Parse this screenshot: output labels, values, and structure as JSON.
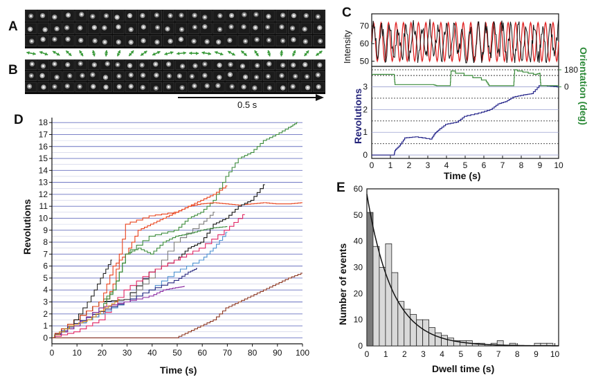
{
  "panels": {
    "a": {
      "label": "A"
    },
    "b": {
      "label": "B"
    },
    "c": {
      "label": "C"
    },
    "d": {
      "label": "D"
    },
    "e": {
      "label": "E"
    }
  },
  "scale_bar": {
    "label": "0.5 s"
  },
  "colors": {
    "frame": "#0b0b0b",
    "arrows": "#3a9a3a",
    "red": "#e02020",
    "green": "#3a8a3a",
    "blue": "#25258a",
    "grid": "#9aa0d0"
  },
  "chart_data": [
    {
      "id": "C-top",
      "type": "line",
      "ylabel": "Intensity",
      "xlim": [
        0,
        10
      ],
      "ylim": [
        47,
        77
      ],
      "yticks": [
        50,
        60,
        70
      ],
      "series": [
        {
          "color": "#e02020",
          "kind": "sine",
          "period_s": 0.4,
          "mean": 61,
          "amplitude": 11
        },
        {
          "color": "#111111",
          "kind": "noisy-signal",
          "mean": 61,
          "range": [
            49,
            76
          ]
        }
      ]
    },
    {
      "id": "C-bottom",
      "type": "line",
      "xlabel": "Time (s)",
      "ylabel": "Revolutions",
      "y2label": "Orientation (deg)",
      "xlim": [
        0,
        10
      ],
      "xticks": [
        0,
        1,
        2,
        3,
        4,
        5,
        6,
        7,
        8,
        9,
        10
      ],
      "ylim": [
        -0.15,
        3.9
      ],
      "yticks": [
        0,
        1,
        2,
        3
      ],
      "y2ticks": [
        "180",
        "0"
      ],
      "series": [
        {
          "color": "#25258a",
          "x": [
            0,
            1.2,
            1.25,
            1.5,
            1.8,
            2.4,
            3.2,
            3.4,
            3.6,
            4.0,
            4.6,
            5.0,
            5.8,
            6.4,
            6.8,
            7.2,
            7.6,
            8.2,
            8.6,
            9.0,
            9.3,
            10
          ],
          "y": [
            0,
            0,
            0.2,
            0.4,
            0.75,
            0.8,
            0.7,
            0.95,
            1.1,
            1.35,
            1.45,
            1.7,
            1.85,
            2.0,
            2.25,
            2.35,
            2.55,
            2.65,
            2.7,
            3.05,
            3.05,
            3.0
          ]
        },
        {
          "color": "#3a8a3a",
          "axis": "orientation",
          "x": [
            0,
            1.2,
            1.25,
            3.3,
            3.5,
            4.2,
            4.25,
            6.1,
            6.3,
            7.6,
            7.65,
            8.8,
            9.0,
            9.05,
            10
          ],
          "y": [
            3.55,
            3.55,
            3.1,
            3.1,
            3.05,
            3.05,
            3.7,
            3.3,
            3.05,
            3.05,
            3.75,
            3.55,
            3.6,
            3.05,
            3.05
          ]
        }
      ]
    },
    {
      "id": "D",
      "type": "line",
      "xlabel": "Time (s)",
      "ylabel": "Revolutions",
      "xlim": [
        0,
        100
      ],
      "xticks": [
        0,
        10,
        20,
        30,
        40,
        50,
        60,
        70,
        80,
        90,
        100
      ],
      "ylim": [
        -0.5,
        18.3
      ],
      "yticks": [
        0,
        1,
        2,
        3,
        4,
        5,
        6,
        7,
        8,
        9,
        10,
        11,
        12,
        13,
        14,
        15,
        16,
        17,
        18
      ],
      "series": [
        {
          "color": "#3a8a3a",
          "x": [
            0,
            10,
            20,
            25,
            30,
            40,
            50,
            55,
            60,
            65,
            70,
            75,
            80,
            85,
            90,
            95,
            98
          ],
          "y": [
            0,
            1.5,
            3,
            4,
            7,
            8.5,
            9,
            10,
            10.5,
            11.5,
            13.5,
            15,
            15.5,
            16.5,
            17,
            17.6,
            18
          ]
        },
        {
          "color": "#e8401a",
          "x": [
            0,
            10,
            20,
            25,
            30,
            40,
            50,
            55,
            60,
            65,
            70,
            75,
            80,
            85,
            90,
            95,
            100
          ],
          "y": [
            0,
            1,
            2,
            4.5,
            9.5,
            10.2,
            10.5,
            11,
            11.2,
            11.3,
            11.2,
            11.1,
            11.2,
            11.3,
            11.2,
            11.2,
            11.3
          ]
        },
        {
          "color": "#111111",
          "x": [
            0,
            10,
            20,
            30,
            40,
            50,
            55,
            60,
            65,
            70,
            75,
            80,
            85
          ],
          "y": [
            0,
            1.5,
            3,
            3.2,
            5.5,
            6.5,
            7.5,
            8,
            9.5,
            10,
            11,
            11.5,
            12.8
          ]
        },
        {
          "color": "#e8401a",
          "x": [
            0,
            10,
            20,
            25,
            30,
            35,
            40,
            45,
            50,
            55,
            60,
            65,
            70
          ],
          "y": [
            0,
            1.5,
            3,
            6,
            7,
            9,
            9.5,
            10,
            10.5,
            11,
            11.5,
            12,
            12.7
          ]
        },
        {
          "color": "#7a7a7a",
          "x": [
            0,
            10,
            20,
            30,
            40,
            50,
            60,
            65
          ],
          "y": [
            0,
            1,
            2,
            3,
            5,
            8,
            9.5,
            10.5
          ]
        },
        {
          "color": "#e02060",
          "x": [
            0,
            10,
            20,
            30,
            40,
            50,
            60,
            70,
            77
          ],
          "y": [
            0,
            0.5,
            1.5,
            4,
            5.5,
            6.5,
            7.5,
            9,
            10.3
          ]
        },
        {
          "color": "#3a8a3a",
          "x": [
            0,
            10,
            20,
            25,
            30,
            35,
            40,
            45,
            50,
            55,
            60,
            65,
            70
          ],
          "y": [
            0,
            1,
            2.5,
            4,
            7,
            7.5,
            7,
            8,
            8.5,
            8.7,
            9,
            9.2,
            9.3
          ]
        },
        {
          "color": "#4a8fd0",
          "x": [
            0,
            10,
            20,
            30,
            40,
            50,
            60,
            65,
            70
          ],
          "y": [
            0,
            1,
            2,
            3,
            4,
            5.5,
            6.5,
            7.5,
            8.8
          ]
        },
        {
          "color": "#2a2a80",
          "x": [
            0,
            10,
            20,
            30,
            40,
            50,
            55,
            58
          ],
          "y": [
            0,
            1.2,
            2.2,
            3,
            4,
            4.8,
            5.5,
            5.8
          ]
        },
        {
          "color": "#8a2aa0",
          "x": [
            0,
            10,
            20,
            30,
            40,
            45,
            50,
            53
          ],
          "y": [
            0,
            1,
            2.5,
            3,
            3.5,
            4,
            4.2,
            4.3
          ]
        },
        {
          "color": "#222222",
          "x": [
            0,
            8,
            15,
            20,
            24
          ],
          "y": [
            0,
            1,
            3,
            5,
            6.5
          ]
        },
        {
          "color": "#d09020",
          "x": [
            0,
            8,
            15,
            22,
            27
          ],
          "y": [
            0,
            1,
            1.5,
            2.5,
            3.2
          ]
        },
        {
          "color": "#8b3520",
          "x": [
            0,
            30,
            50,
            55,
            60,
            65,
            70,
            75,
            80,
            85,
            90,
            95,
            100
          ],
          "y": [
            0,
            0,
            0,
            0.5,
            1,
            1.5,
            2.5,
            3,
            3.5,
            4,
            4.5,
            5,
            5.4
          ]
        }
      ]
    },
    {
      "id": "E",
      "type": "bar",
      "xlabel": "Dwell time (s)",
      "ylabel": "Number of events",
      "xlim": [
        0,
        10.2
      ],
      "xticks": [
        0,
        1,
        2,
        3,
        4,
        5,
        6,
        7,
        8,
        9,
        10
      ],
      "ylim": [
        0,
        60
      ],
      "yticks": [
        0,
        10,
        20,
        30,
        40,
        50,
        60
      ],
      "bin_width": 0.33,
      "values": [
        51,
        38,
        30,
        39,
        28,
        17,
        14,
        12,
        10,
        10,
        7,
        5,
        4,
        3,
        2,
        2,
        2,
        1,
        1,
        0,
        1,
        2,
        0,
        1,
        0,
        0,
        0,
        1,
        1,
        1
      ],
      "fit": {
        "type": "exponential",
        "a": 58,
        "tau": 1.35,
        "color": "#111111"
      }
    }
  ]
}
